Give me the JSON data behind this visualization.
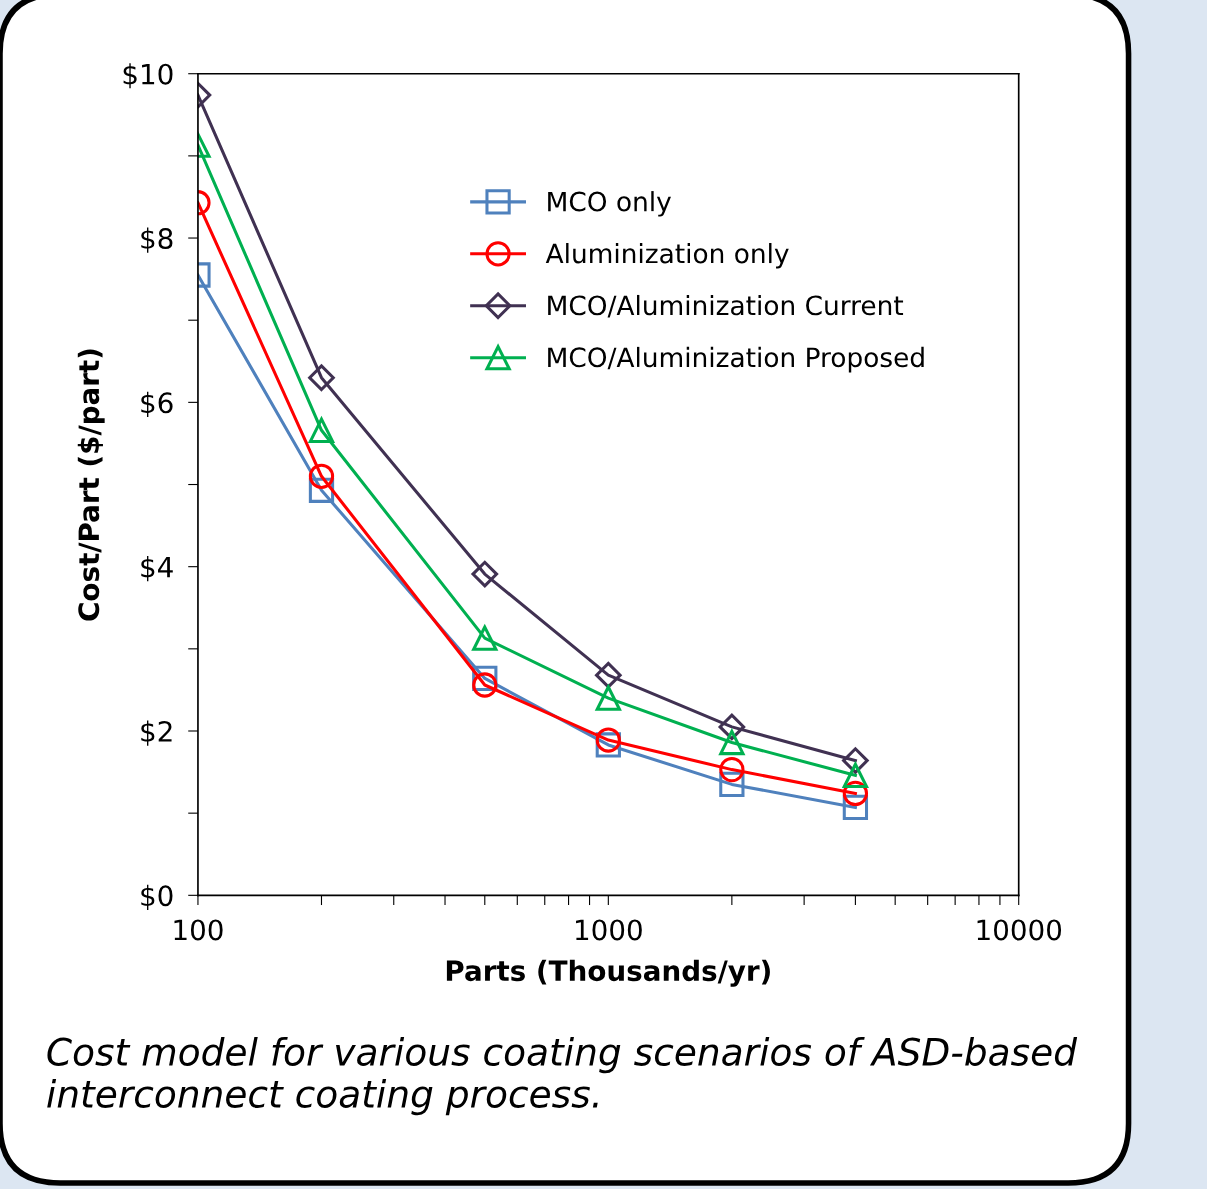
{
  "chart_data": {
    "type": "line",
    "xlabel": "Parts (Thousands/yr)",
    "ylabel": "Cost/Part ($/part)",
    "x": [
      100,
      200,
      500,
      1000,
      2000,
      4000
    ],
    "series": [
      {
        "name": "MCO only",
        "color": "#4f81bd",
        "marker": "square",
        "values": [
          7.55,
          4.93,
          2.64,
          1.83,
          1.35,
          1.07
        ]
      },
      {
        "name": "Aluminization only",
        "color": "#ff0000",
        "marker": "circle",
        "values": [
          8.43,
          5.1,
          2.56,
          1.89,
          1.53,
          1.24
        ]
      },
      {
        "name": "MCO/Aluminization Current",
        "color": "#403152",
        "marker": "diamond",
        "values": [
          9.74,
          6.3,
          3.91,
          2.68,
          2.05,
          1.64
        ]
      },
      {
        "name": "MCO/Aluminization Proposed",
        "color": "#00b050",
        "marker": "triangle",
        "values": [
          9.13,
          5.66,
          3.13,
          2.4,
          1.86,
          1.46
        ]
      }
    ],
    "log": "x",
    "xlim": [
      100,
      10000
    ],
    "xticks": [
      100,
      {
        "value": 200,
        "label": null
      },
      {
        "value": 300,
        "label": null
      },
      {
        "value": 400,
        "label": null
      },
      {
        "value": 500,
        "label": null
      },
      {
        "value": 600,
        "label": null
      },
      {
        "value": 700,
        "label": null
      },
      {
        "value": 800,
        "label": null
      },
      {
        "value": 900,
        "label": null
      },
      1000,
      {
        "value": 2000,
        "label": null
      },
      {
        "value": 3000,
        "label": null
      },
      {
        "value": 4000,
        "label": null
      },
      {
        "value": 5000,
        "label": null
      },
      {
        "value": 6000,
        "label": null
      },
      {
        "value": 7000,
        "label": null
      },
      {
        "value": 8000,
        "label": null
      },
      {
        "value": 9000,
        "label": null
      },
      10000
    ],
    "ylim": [
      0,
      10
    ],
    "yticks": [
      {
        "value": 0,
        "label": "$0"
      },
      {
        "value": 1,
        "label": null
      },
      {
        "value": 2,
        "label": "$2"
      },
      {
        "value": 3,
        "label": null
      },
      {
        "value": 4,
        "label": "$4"
      },
      {
        "value": 5,
        "label": null
      },
      {
        "value": 6,
        "label": "$6"
      },
      {
        "value": 7,
        "label": null
      },
      {
        "value": 8,
        "label": "$8"
      },
      {
        "value": 9,
        "label": null
      },
      {
        "value": 10,
        "label": "$10"
      }
    ],
    "grid": false,
    "legend": "top right",
    "line_style": "solid",
    "annotations": [
      "Cost model for various coating scenarios of ASD-based interconnect coating process."
    ]
  }
}
